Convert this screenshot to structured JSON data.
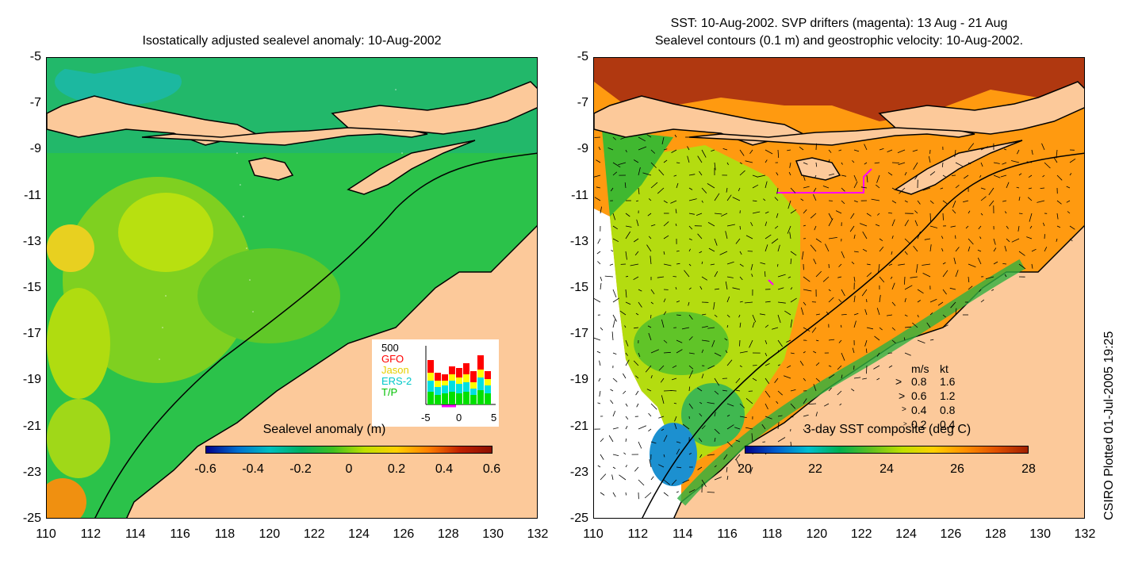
{
  "left_map": {
    "title": "Isostatically adjusted sealevel anomaly: 10-Aug-2002",
    "colorbar": {
      "label": "Sealevel anomaly (m)",
      "ticks": [
        "-0.6",
        "-0.4",
        "-0.2",
        "0",
        "0.2",
        "0.4",
        "0.6"
      ],
      "gradient": [
        "#00008b",
        "#0070d0",
        "#00c0c0",
        "#00b060",
        "#40c020",
        "#c0e000",
        "#ffd000",
        "#ff8000",
        "#c02000",
        "#8b1000"
      ]
    },
    "inset": {
      "ymax_label": "500",
      "legend": [
        {
          "name": "GFO",
          "color": "#ff0000"
        },
        {
          "name": "Jason",
          "color": "#ffff00"
        },
        {
          "name": "ERS-2",
          "color": "#00e0e0"
        },
        {
          "name": "T/P",
          "color": "#00e000"
        }
      ],
      "x_ticks": [
        "-5",
        "0",
        "5"
      ]
    }
  },
  "right_map": {
    "title_line1": "SST: 10-Aug-2002. SVP drifters (magenta): 13 Aug - 21 Aug",
    "title_line2": "Sealevel contours (0.1 m) and geostrophic velocity: 10-Aug-2002.",
    "colorbar": {
      "label": "3-day SST composite (deg C)",
      "ticks": [
        "20",
        "22",
        "24",
        "26",
        "28"
      ],
      "gradient": [
        "#00008b",
        "#0060d0",
        "#00c0d0",
        "#00b050",
        "#60c020",
        "#c0e000",
        "#ffd000",
        "#ff9000",
        "#e05000",
        "#a02000"
      ]
    },
    "velocity_legend": {
      "header_ms": "m/s",
      "header_kt": "kt",
      "rows": [
        {
          "ms": "0.8",
          "kt": "1.6"
        },
        {
          "ms": "0.6",
          "kt": "1.2"
        },
        {
          "ms": "0.4",
          "kt": "0.8"
        },
        {
          "ms": "0.2",
          "kt": "0.4"
        }
      ]
    }
  },
  "axes": {
    "y_ticks": [
      "-5",
      "-7",
      "-9",
      "-11",
      "-13",
      "-15",
      "-17",
      "-19",
      "-21",
      "-23",
      "-25"
    ],
    "x_ticks": [
      "110",
      "112",
      "114",
      "116",
      "118",
      "120",
      "122",
      "124",
      "126",
      "128",
      "130",
      "132"
    ]
  },
  "credit": "CSIRO Plotted 01-Jul-2005 19:25",
  "colors": {
    "land": "#fcc99a",
    "no_data": "#ffffff",
    "drifter": "#ff00ff"
  }
}
